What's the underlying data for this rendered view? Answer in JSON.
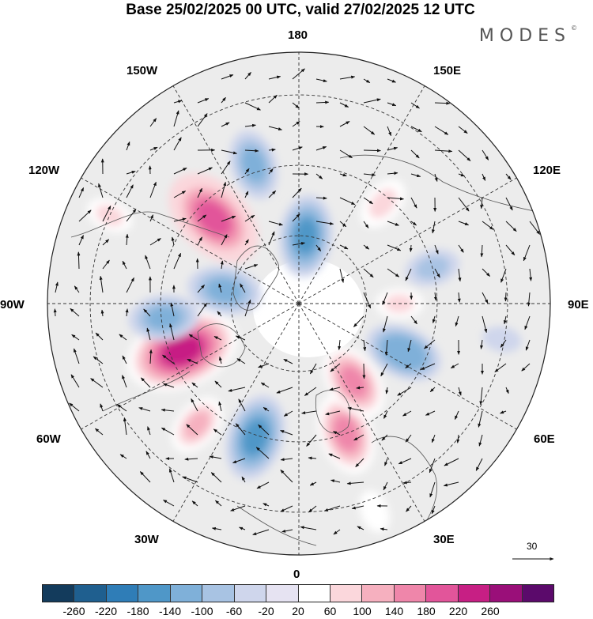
{
  "title": "Base 25/02/2025 00 UTC, valid 27/02/2025 12 UTC",
  "brand": {
    "name": "MODES",
    "mark": "©"
  },
  "longitude_labels": {
    "top": "180",
    "bottom": "0",
    "left": "90W",
    "right": "90E",
    "upper_left": "150W",
    "upper_right": "150E",
    "left_upper": "120W",
    "right_upper": "120E",
    "left_lower": "60W",
    "right_lower": "60E",
    "lower_left": "30W",
    "lower_right": "30E"
  },
  "reference_vector": {
    "label": "30"
  },
  "colorbar": {
    "ticks": [
      "-260",
      "-220",
      "-180",
      "-140",
      "-100",
      "-60",
      "-20",
      "20",
      "60",
      "100",
      "140",
      "180",
      "220",
      "260"
    ],
    "colors": [
      "#133b5c",
      "#1f5f8f",
      "#2f7db7",
      "#4f97c8",
      "#7fb0d9",
      "#a8c3e3",
      "#cfd6ec",
      "#e6e3f2",
      "#ffffff",
      "#fbd7dc",
      "#f6b0bf",
      "#ef86aa",
      "#e2559a",
      "#c71f84",
      "#9a0f79",
      "#5b0a6b"
    ]
  },
  "map": {
    "projection": "north-polar-stereographic",
    "anomalies": [
      {
        "lon": -140,
        "r": 0.63,
        "value": 100
      },
      {
        "lon": -162,
        "r": 0.56,
        "value": -160
      },
      {
        "lon": 160,
        "r": 0.55,
        "value": 150
      },
      {
        "lon": 145,
        "r": 0.38,
        "value": 140
      },
      {
        "lon": -112,
        "r": 0.5,
        "value": 230
      },
      {
        "lon": -96,
        "r": 0.54,
        "value": -120
      },
      {
        "lon": -80,
        "r": 0.3,
        "value": -130
      },
      {
        "lon": 115,
        "r": 0.46,
        "value": -140
      },
      {
        "lon": 90,
        "r": 0.4,
        "value": 60
      },
      {
        "lon": 75,
        "r": 0.55,
        "value": -80
      },
      {
        "lon": -45,
        "r": 0.48,
        "value": 210
      },
      {
        "lon": -18,
        "r": 0.58,
        "value": -120
      },
      {
        "lon": 6,
        "r": 0.27,
        "value": -150
      },
      {
        "lon": 40,
        "r": 0.52,
        "value": 80
      },
      {
        "lon": -65,
        "r": 0.83,
        "value": 60
      },
      {
        "lon": 100,
        "r": 0.82,
        "value": -40
      },
      {
        "lon": 160,
        "r": 0.88,
        "value": 50
      }
    ]
  }
}
